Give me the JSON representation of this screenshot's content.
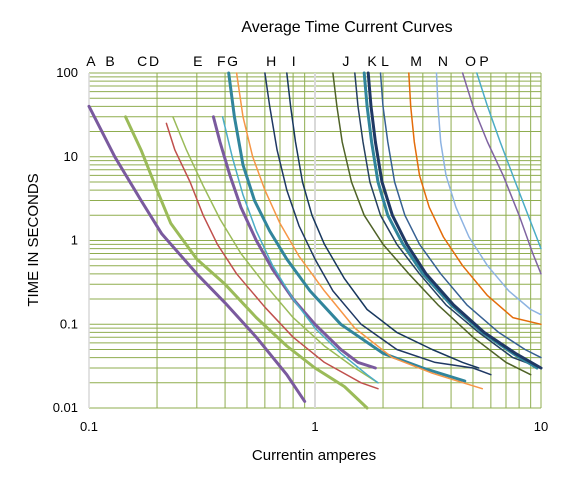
{
  "chart_data": {
    "type": "line",
    "title": "Average Time Current Curves",
    "xlabel": "Currentin amperes",
    "ylabel": "TIME IN SECONDS",
    "x_scale": "log",
    "y_scale": "log",
    "xlim": [
      0.1,
      10
    ],
    "ylim": [
      0.01,
      100
    ],
    "x_ticks": [
      0.1,
      1,
      10
    ],
    "x_tick_labels": [
      "0.1",
      "1",
      "10"
    ],
    "y_ticks": [
      0.01,
      0.1,
      1,
      10,
      100
    ],
    "y_tick_labels": [
      "0.01",
      "0.1",
      "1",
      "10",
      "100"
    ],
    "grid": true,
    "grid_color": "#8fad4f",
    "legend": "none",
    "curve_labels": [
      {
        "text": "A",
        "x": 0.102
      },
      {
        "text": "B",
        "x": 0.124
      },
      {
        "text": "C",
        "x": 0.172
      },
      {
        "text": "D",
        "x": 0.194
      },
      {
        "text": "E",
        "x": 0.303
      },
      {
        "text": "F",
        "x": 0.385
      },
      {
        "text": "G",
        "x": 0.432
      },
      {
        "text": "H",
        "x": 0.64
      },
      {
        "text": "I",
        "x": 0.805
      },
      {
        "text": "J",
        "x": 1.37
      },
      {
        "text": "K",
        "x": 1.79
      },
      {
        "text": "L",
        "x": 2.04
      },
      {
        "text": "M",
        "x": 2.8
      },
      {
        "text": "N",
        "x": 3.68
      },
      {
        "text": "O",
        "x": 4.88
      },
      {
        "text": "P",
        "x": 5.6
      }
    ],
    "series": [
      {
        "color": "#7a5a9e",
        "width": 3,
        "x": [
          0.1,
          0.13,
          0.17,
          0.21,
          0.3,
          0.4,
          0.55,
          0.75,
          0.9
        ],
        "y": [
          40,
          10,
          3,
          1.2,
          0.4,
          0.18,
          0.07,
          0.025,
          0.012
        ]
      },
      {
        "color": "#9bbb59",
        "width": 3,
        "x": [
          0.145,
          0.17,
          0.2,
          0.23,
          0.3,
          0.4,
          0.55,
          0.75,
          1.0,
          1.35,
          1.7
        ],
        "y": [
          30,
          12,
          4,
          1.6,
          0.6,
          0.3,
          0.12,
          0.055,
          0.03,
          0.018,
          0.01
        ]
      },
      {
        "color": "#c0504d",
        "width": 1.5,
        "x": [
          0.22,
          0.24,
          0.28,
          0.32,
          0.37,
          0.45,
          0.6,
          0.8,
          1.1,
          1.6,
          1.9
        ],
        "y": [
          25,
          12,
          5,
          2,
          0.9,
          0.4,
          0.16,
          0.07,
          0.035,
          0.02,
          0.017
        ]
      },
      {
        "color": "#9bbb59",
        "width": 1.5,
        "x": [
          0.235,
          0.27,
          0.32,
          0.38,
          0.47,
          0.6,
          0.8,
          1.1,
          1.5,
          1.9
        ],
        "y": [
          30,
          12,
          4.5,
          1.8,
          0.7,
          0.3,
          0.12,
          0.055,
          0.03,
          0.02
        ]
      },
      {
        "color": "#7a5a9e",
        "width": 3,
        "x": [
          0.355,
          0.38,
          0.42,
          0.47,
          0.55,
          0.65,
          0.8,
          1.0,
          1.3,
          1.55,
          1.85
        ],
        "y": [
          30,
          15,
          6,
          2.5,
          1,
          0.45,
          0.2,
          0.1,
          0.05,
          0.035,
          0.03
        ]
      },
      {
        "color": "#4bacc6",
        "width": 1.5,
        "x": [
          0.39,
          0.43,
          0.48,
          0.55,
          0.65,
          0.8,
          1.0,
          1.3,
          1.7,
          1.9
        ],
        "y": [
          30,
          10,
          3.5,
          1.3,
          0.5,
          0.2,
          0.09,
          0.045,
          0.025,
          0.02
        ]
      },
      {
        "color": "#31859c",
        "width": 3,
        "x": [
          0.415,
          0.44,
          0.48,
          0.54,
          0.63,
          0.75,
          0.95,
          1.3,
          2.0,
          3.0,
          4.6
        ],
        "y": [
          100,
          30,
          8,
          3,
          1.3,
          0.6,
          0.25,
          0.1,
          0.045,
          0.03,
          0.021
        ]
      },
      {
        "color": "#f79646",
        "width": 1.5,
        "x": [
          0.45,
          0.48,
          0.53,
          0.6,
          0.7,
          0.85,
          1.1,
          1.5,
          2.2,
          3.3,
          5.5
        ],
        "y": [
          100,
          30,
          10,
          4,
          1.6,
          0.65,
          0.25,
          0.09,
          0.04,
          0.026,
          0.017
        ]
      },
      {
        "color": "#1f3864",
        "width": 1.5,
        "x": [
          0.6,
          0.63,
          0.68,
          0.75,
          0.85,
          1.0,
          1.2,
          1.6,
          2.3,
          3.4,
          5.0,
          6.0
        ],
        "y": [
          100,
          40,
          12,
          4,
          1.5,
          0.6,
          0.25,
          0.1,
          0.05,
          0.035,
          0.03,
          0.025
        ]
      },
      {
        "color": "#17375e",
        "width": 1.5,
        "x": [
          0.75,
          0.78,
          0.82,
          0.88,
          0.97,
          1.1,
          1.35,
          1.7,
          2.3,
          3.3,
          4.5,
          5.3
        ],
        "y": [
          100,
          40,
          15,
          5,
          2,
          0.9,
          0.35,
          0.15,
          0.08,
          0.05,
          0.035,
          0.03
        ]
      },
      {
        "color": "#4f6228",
        "width": 1.5,
        "x": [
          1.2,
          1.25,
          1.32,
          1.45,
          1.65,
          2.0,
          2.6,
          3.5,
          5.0,
          7.0,
          9.0
        ],
        "y": [
          100,
          40,
          15,
          5,
          2,
          0.9,
          0.4,
          0.17,
          0.07,
          0.035,
          0.025
        ]
      },
      {
        "color": "#254061",
        "width": 1.5,
        "x": [
          1.5,
          1.55,
          1.63,
          1.75,
          1.95,
          2.3,
          2.9,
          3.8,
          5.3,
          7.5,
          10
        ],
        "y": [
          100,
          40,
          15,
          5,
          2,
          0.9,
          0.4,
          0.17,
          0.08,
          0.04,
          0.03
        ]
      },
      {
        "color": "#31859c",
        "width": 3,
        "x": [
          1.65,
          1.7,
          1.78,
          1.9,
          2.1,
          2.45,
          3.0,
          4.0,
          5.5,
          7.5,
          9.6
        ],
        "y": [
          100,
          40,
          15,
          5,
          2,
          0.9,
          0.4,
          0.17,
          0.08,
          0.045,
          0.03
        ]
      },
      {
        "color": "#1f3864",
        "width": 3,
        "x": [
          1.72,
          1.77,
          1.85,
          1.98,
          2.2,
          2.55,
          3.1,
          4.1,
          5.6,
          7.7,
          10
        ],
        "y": [
          100,
          40,
          15,
          5,
          2,
          0.9,
          0.4,
          0.17,
          0.08,
          0.045,
          0.03
        ]
      },
      {
        "color": "#366092",
        "width": 1.5,
        "x": [
          1.95,
          2.0,
          2.1,
          2.25,
          2.5,
          2.9,
          3.6,
          4.7,
          6.5,
          8.5,
          10
        ],
        "y": [
          100,
          40,
          15,
          5,
          2,
          0.9,
          0.4,
          0.17,
          0.08,
          0.05,
          0.04
        ]
      },
      {
        "color": "#e46c0a",
        "width": 1.5,
        "x": [
          2.6,
          2.65,
          2.75,
          2.9,
          3.2,
          3.7,
          4.5,
          5.8,
          7.5,
          10
        ],
        "y": [
          100,
          40,
          15,
          6,
          2.5,
          1.1,
          0.5,
          0.22,
          0.12,
          0.1
        ]
      },
      {
        "color": "#8db3e2",
        "width": 1.5,
        "x": [
          3.45,
          3.5,
          3.6,
          3.8,
          4.2,
          4.8,
          5.8,
          7.2,
          9.0,
          10
        ],
        "y": [
          100,
          40,
          15,
          6,
          2.5,
          1.1,
          0.5,
          0.25,
          0.15,
          0.13
        ]
      },
      {
        "color": "#8064a2",
        "width": 1.5,
        "x": [
          4.5,
          5.0,
          5.8,
          6.8,
          8.0,
          9.2,
          10
        ],
        "y": [
          100,
          40,
          15,
          6,
          2,
          0.7,
          0.4
        ]
      },
      {
        "color": "#4bacc6",
        "width": 1.5,
        "x": [
          5.2,
          5.8,
          6.6,
          7.7,
          8.9,
          10
        ],
        "y": [
          100,
          40,
          15,
          5,
          1.8,
          0.8
        ]
      }
    ]
  }
}
